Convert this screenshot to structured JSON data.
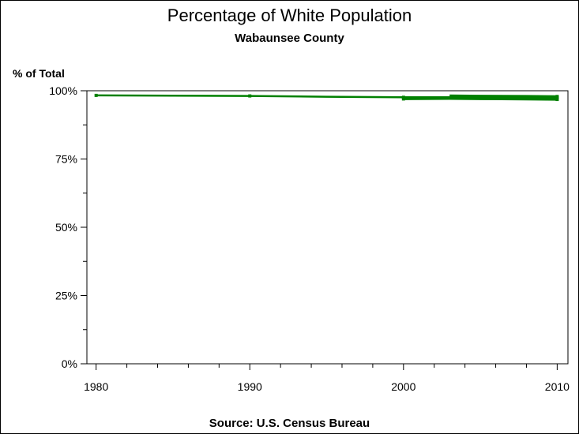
{
  "title": "Percentage of White Population",
  "subtitle": "Wabaunsee County",
  "source": "Source: U.S. Census Bureau",
  "chart_data": {
    "type": "line",
    "title": "Percentage of White Population",
    "subtitle": "Wabaunsee County",
    "xlabel": "",
    "ylabel": "% of Total",
    "xlim": [
      1979.4,
      2010.7
    ],
    "ylim": [
      0,
      100
    ],
    "x_ticks": [
      "1980",
      "1990",
      "2000",
      "2010"
    ],
    "y_ticks": [
      "0%",
      "25%",
      "50%",
      "75%",
      "100%"
    ],
    "line_color": "#008000",
    "series": [
      {
        "x": [
          1980,
          1985,
          1990,
          1995,
          2000,
          2003,
          2005,
          2008,
          2010
        ],
        "y": [
          98.3,
          98.2,
          98.1,
          97.8,
          97.6,
          97.6,
          97.5,
          97.5,
          97.4
        ]
      },
      {
        "x": [
          2000,
          2003,
          2005,
          2008,
          2010
        ],
        "y": [
          97.0,
          97.1,
          97.0,
          96.9,
          96.8
        ]
      },
      {
        "x": [
          2003,
          2005,
          2008,
          2010
        ],
        "y": [
          98.2,
          98.1,
          98.0,
          97.9
        ]
      }
    ],
    "markers": [
      {
        "x": 1980,
        "y": 98.3
      },
      {
        "x": 1990,
        "y": 98.1
      },
      {
        "x": 2000,
        "y": 97.6
      },
      {
        "x": 2000,
        "y": 97.0
      },
      {
        "x": 2010,
        "y": 97.4
      },
      {
        "x": 2010,
        "y": 96.8
      },
      {
        "x": 2010,
        "y": 97.9
      }
    ]
  }
}
